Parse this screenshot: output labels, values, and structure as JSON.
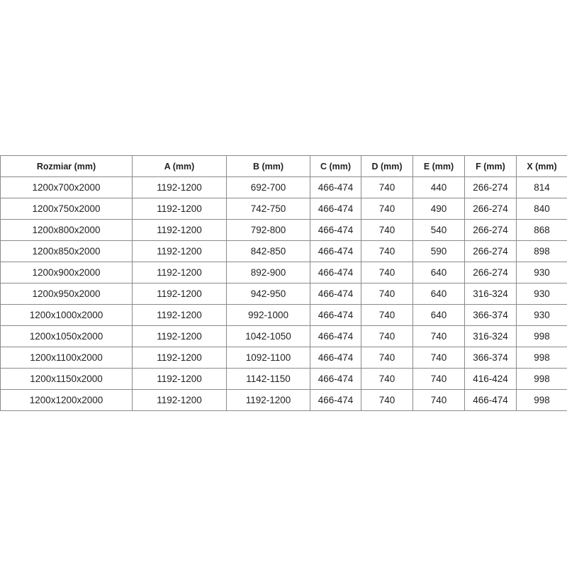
{
  "table": {
    "headers": [
      "Rozmiar (mm)",
      "A (mm)",
      "B (mm)",
      "C (mm)",
      "D (mm)",
      "E (mm)",
      "F (mm)",
      "X (mm)"
    ],
    "rows": [
      [
        "1200x700x2000",
        "1192-1200",
        "692-700",
        "466-474",
        "740",
        "440",
        "266-274",
        "814"
      ],
      [
        "1200x750x2000",
        "1192-1200",
        "742-750",
        "466-474",
        "740",
        "490",
        "266-274",
        "840"
      ],
      [
        "1200x800x2000",
        "1192-1200",
        "792-800",
        "466-474",
        "740",
        "540",
        "266-274",
        "868"
      ],
      [
        "1200x850x2000",
        "1192-1200",
        "842-850",
        "466-474",
        "740",
        "590",
        "266-274",
        "898"
      ],
      [
        "1200x900x2000",
        "1192-1200",
        "892-900",
        "466-474",
        "740",
        "640",
        "266-274",
        "930"
      ],
      [
        "1200x950x2000",
        "1192-1200",
        "942-950",
        "466-474",
        "740",
        "640",
        "316-324",
        "930"
      ],
      [
        "1200x1000x2000",
        "1192-1200",
        "992-1000",
        "466-474",
        "740",
        "640",
        "366-374",
        "930"
      ],
      [
        "1200x1050x2000",
        "1192-1200",
        "1042-1050",
        "466-474",
        "740",
        "740",
        "316-324",
        "998"
      ],
      [
        "1200x1100x2000",
        "1192-1200",
        "1092-1100",
        "466-474",
        "740",
        "740",
        "366-374",
        "998"
      ],
      [
        "1200x1150x2000",
        "1192-1200",
        "1142-1150",
        "466-474",
        "740",
        "740",
        "416-424",
        "998"
      ],
      [
        "1200x1200x2000",
        "1192-1200",
        "1192-1200",
        "466-474",
        "740",
        "740",
        "466-474",
        "998"
      ]
    ]
  }
}
